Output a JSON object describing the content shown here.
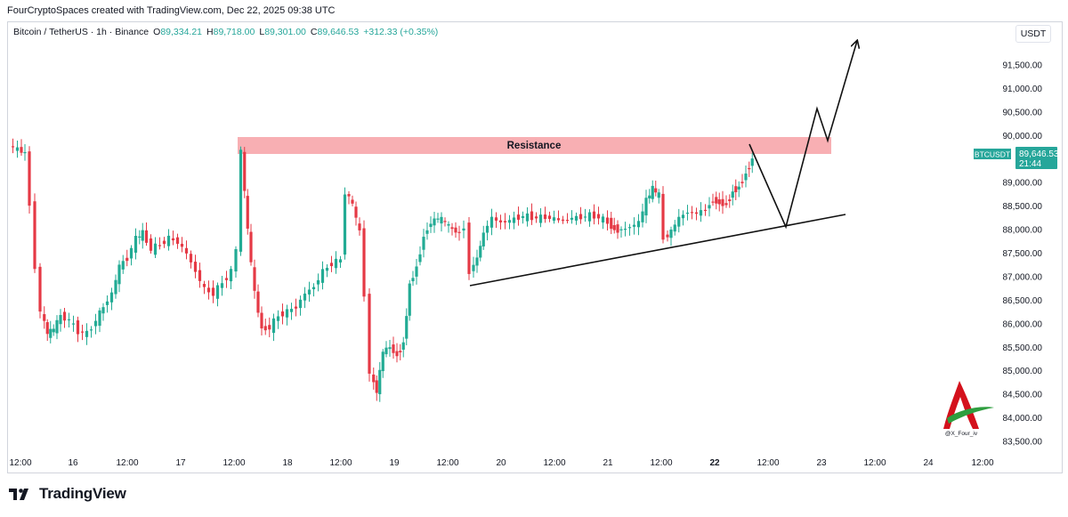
{
  "header": {
    "caption": "FourCryptoSpaces created with TradingView.com, Dec 22, 2025 09:38 UTC"
  },
  "legend": {
    "symbol": "Bitcoin / TetherUS · 1h · Binance",
    "open_label": "O",
    "open": "89,334.21",
    "high_label": "H",
    "high": "89,718.00",
    "low_label": "L",
    "low": "89,301.00",
    "close_label": "C",
    "close": "89,646.53",
    "change": "+312.33 (+0.35%)",
    "value_color": "#26a69a"
  },
  "currency_button": "USDT",
  "price_axis": {
    "ticks": [
      "91,500.00",
      "91,000.00",
      "90,500.00",
      "90,000.00",
      "89,000.00",
      "88,500.00",
      "88,000.00",
      "87,500.00",
      "87,000.00",
      "86,500.00",
      "86,000.00",
      "85,500.00",
      "85,000.00",
      "84,500.00",
      "84,000.00",
      "83,500.00"
    ],
    "tick_values": [
      91500,
      91000,
      90500,
      90000,
      89000,
      88500,
      88000,
      87500,
      87000,
      86500,
      86000,
      85500,
      85000,
      84500,
      84000,
      83500
    ]
  },
  "time_axis": {
    "labels": [
      "12:00",
      "16",
      "12:00",
      "17",
      "12:00",
      "18",
      "12:00",
      "19",
      "12:00",
      "20",
      "12:00",
      "21",
      "12:00",
      "22",
      "12:00",
      "23",
      "12:00",
      "24",
      "12:00"
    ],
    "bold_index": 13
  },
  "price_tag": {
    "symbol": "BTCUSDT",
    "price": "89,646.53",
    "countdown": "21:44",
    "color": "#26a69a"
  },
  "annotations": {
    "resistance_label": "Resistance",
    "resistance_color": "#f7a1a6",
    "watermark_handle": "@X_Four_iv"
  },
  "colors": {
    "up": "#26a69a",
    "down": "#ef5350",
    "bull_candle": "#22ab94",
    "bear_candle": "#e53945"
  },
  "footer": {
    "brand": "TradingView"
  }
}
